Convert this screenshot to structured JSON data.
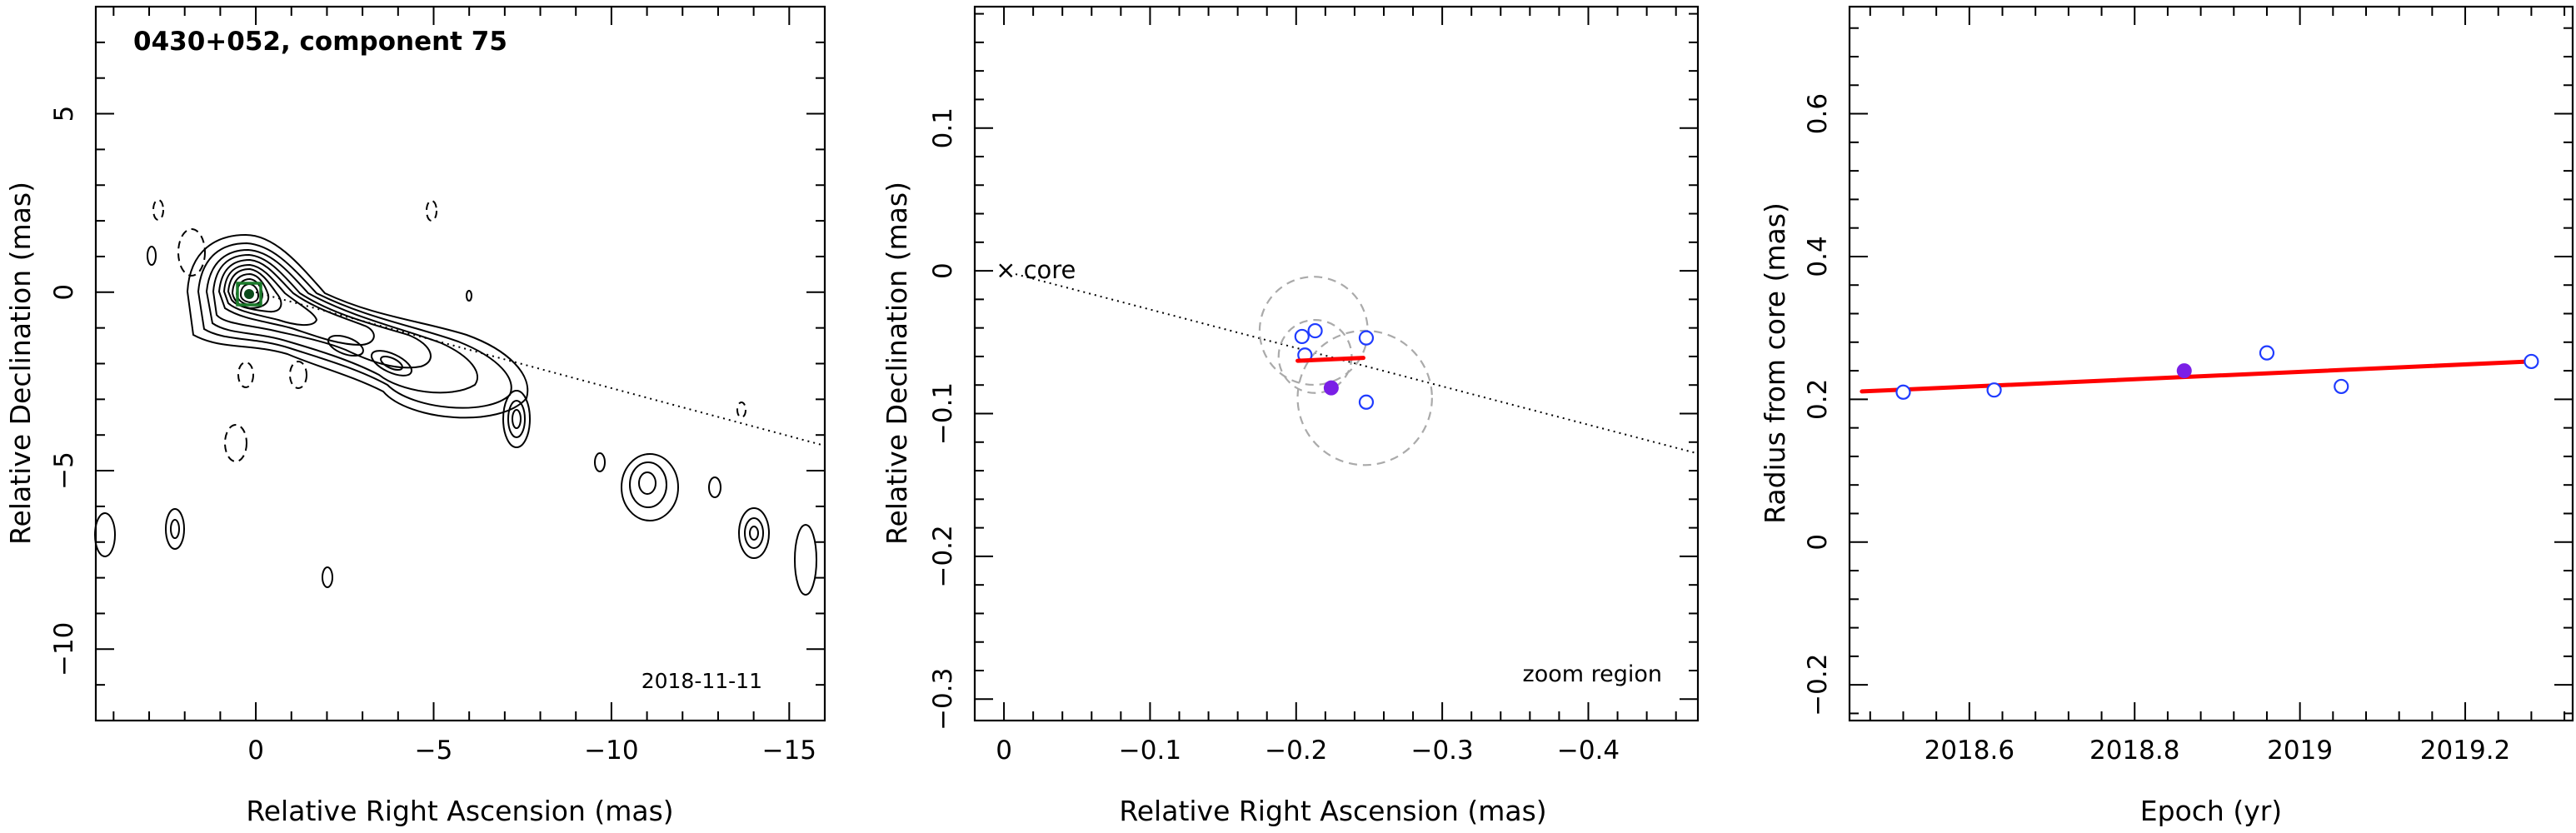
{
  "chart_data": [
    {
      "type": "contour",
      "title": "0430+052, component 75",
      "date_label": "2018-11-11",
      "xlabel": "Relative Right Ascension (mas)",
      "ylabel": "Relative Declination (mas)",
      "xlim": [
        4.5,
        -16
      ],
      "ylim": [
        -12,
        8
      ],
      "xticks": [
        0,
        -5,
        -10,
        -15
      ],
      "xtick_labels": [
        "0",
        "−5",
        "−10",
        "−15"
      ],
      "yticks": [
        -10,
        -5,
        0,
        5
      ],
      "ytick_labels": [
        "−10",
        "−5",
        "0",
        "5"
      ],
      "core": {
        "x": 0.15,
        "y": -0.1
      },
      "jet_direction_line": {
        "from": [
          0,
          0
        ],
        "to": [
          -16,
          -4.3
        ]
      },
      "contour_peak": {
        "x": 0.15,
        "y": -0.1
      },
      "contour_levels": 11
    },
    {
      "type": "scatter",
      "title": "",
      "xlabel": "Relative Right Ascension (mas)",
      "ylabel": "Relative Declination (mas)",
      "xlim": [
        0.02,
        -0.475
      ],
      "ylim": [
        -0.315,
        0.185
      ],
      "xticks": [
        0,
        -0.1,
        -0.2,
        -0.3,
        -0.4
      ],
      "xtick_labels": [
        "0",
        "−0.1",
        "−0.2",
        "−0.3",
        "−0.4"
      ],
      "yticks": [
        -0.3,
        -0.2,
        -0.1,
        0,
        0.1
      ],
      "ytick_labels": [
        "−0.3",
        "−0.2",
        "−0.1",
        "0",
        "0.1"
      ],
      "core_label": "× core",
      "corner_label": "zoom region",
      "direction_line": {
        "from": [
          0,
          0
        ],
        "to": [
          -0.475,
          -0.128
        ]
      },
      "open_points": [
        {
          "x": -0.204,
          "y": -0.046
        },
        {
          "x": -0.213,
          "y": -0.042
        },
        {
          "x": -0.206,
          "y": -0.059
        },
        {
          "x": -0.248,
          "y": -0.047
        },
        {
          "x": -0.248,
          "y": -0.092
        }
      ],
      "filled_point": {
        "x": -0.224,
        "y": -0.082
      },
      "circles": [
        {
          "x": -0.212,
          "y": -0.042,
          "r": 0.037
        },
        {
          "x": -0.213,
          "y": -0.06,
          "r": 0.025
        },
        {
          "x": -0.247,
          "y": -0.089,
          "r": 0.046
        }
      ],
      "fit_segment": {
        "from": [
          -0.201,
          -0.063
        ],
        "to": [
          -0.246,
          -0.061
        ]
      },
      "colors": {
        "open": "#1f3bff",
        "filled": "#7a1fe6",
        "fit": "#ff0000",
        "circle": "#aaaaaa"
      }
    },
    {
      "type": "scatter",
      "title": "",
      "xlabel": "Epoch (yr)",
      "ylabel": "Radius from core (mas)",
      "xlim": [
        2018.455,
        2019.33
      ],
      "ylim": [
        -0.25,
        0.75
      ],
      "xticks": [
        2018.6,
        2018.8,
        2019,
        2019.2
      ],
      "xtick_labels": [
        "2018.6",
        "2018.8",
        "2019",
        "2019.2"
      ],
      "yticks": [
        -0.2,
        0,
        0.2,
        0.4,
        0.6
      ],
      "ytick_labels": [
        "−0.2",
        "0",
        "0.2",
        "0.4",
        "0.6"
      ],
      "open_points": [
        {
          "x": 2018.52,
          "y": 0.21
        },
        {
          "x": 2018.63,
          "y": 0.213
        },
        {
          "x": 2018.96,
          "y": 0.265
        },
        {
          "x": 2019.05,
          "y": 0.218
        },
        {
          "x": 2019.28,
          "y": 0.253
        }
      ],
      "filled_point": {
        "x": 2018.86,
        "y": 0.24
      },
      "fit_line": {
        "from": [
          2018.47,
          0.211
        ],
        "to": [
          2019.28,
          0.253
        ]
      },
      "colors": {
        "open": "#1f3bff",
        "filled": "#7a1fe6",
        "fit": "#ff0000"
      }
    }
  ]
}
